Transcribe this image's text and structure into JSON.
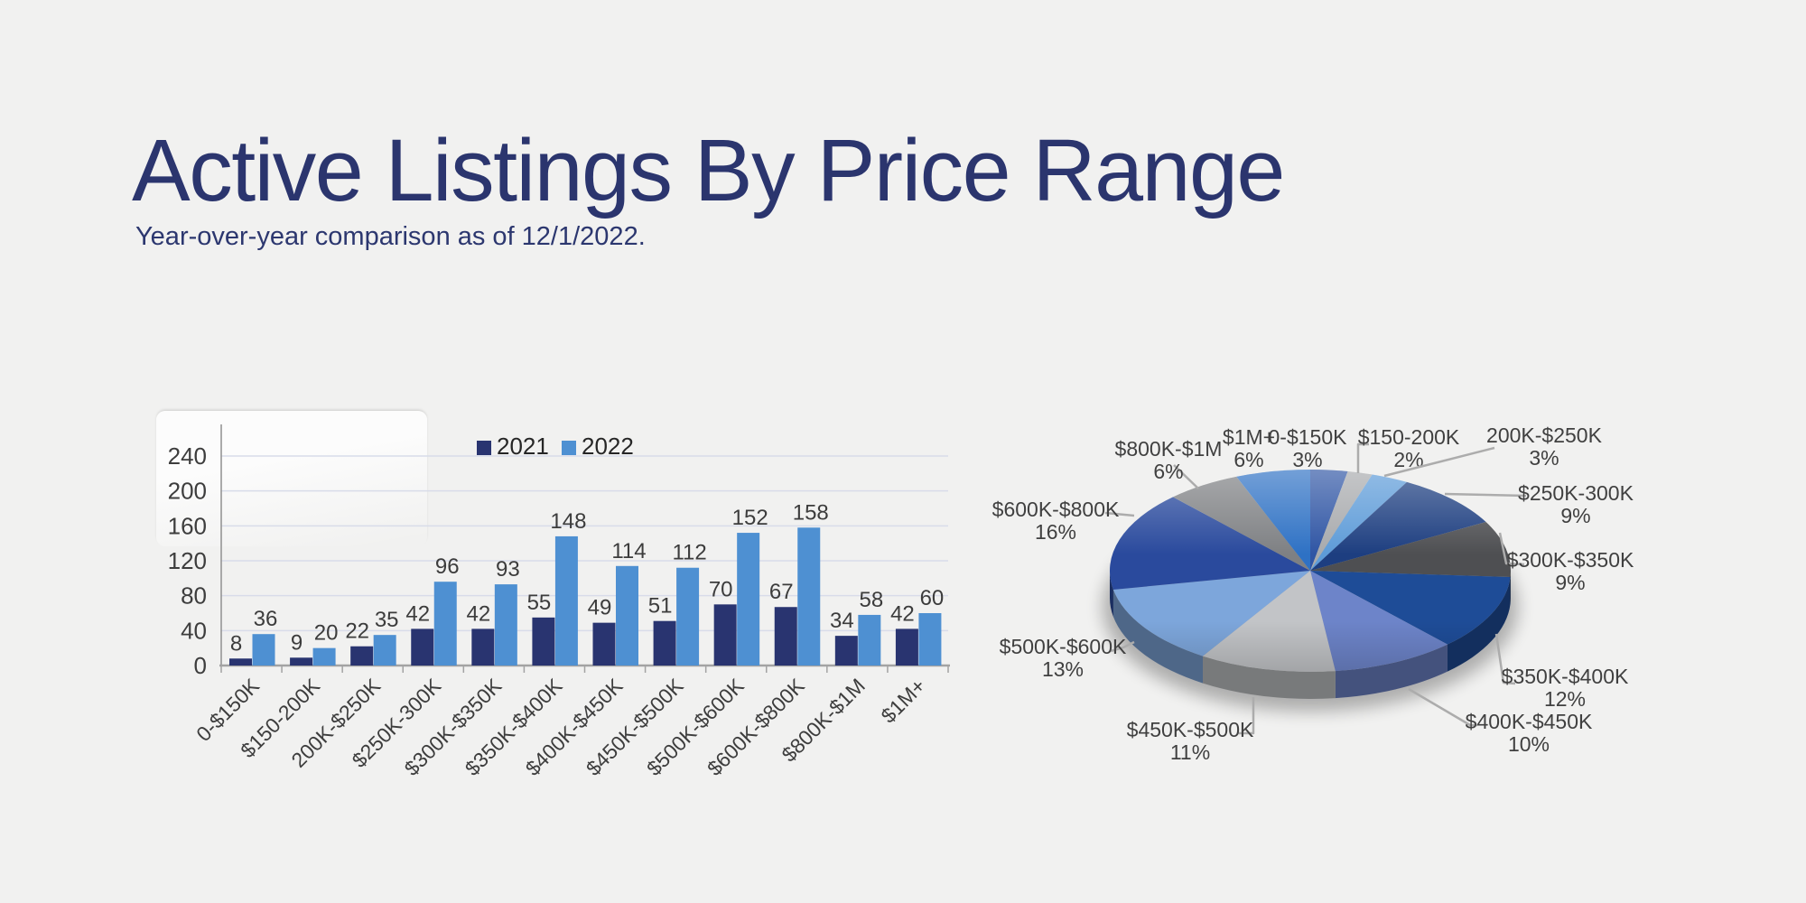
{
  "header": {
    "title": "Active Listings By Price Range",
    "subtitle": "Year-over-year comparison as of 12/1/2022.",
    "title_color": "#2b356e"
  },
  "chart_data": [
    {
      "type": "bar",
      "categories": [
        "0-$150K",
        "$150-200K",
        "200K-$250K",
        "$250K-300K",
        "$300K-$350K",
        "$350K-$400K",
        "$400K-$450K",
        "$450K-$500K",
        "$500K-$600K",
        "$600K-$800K",
        "$800K-$1M",
        "$1M+"
      ],
      "series": [
        {
          "name": "2021",
          "color": "#293470",
          "values": [
            8,
            9,
            22,
            42,
            42,
            55,
            49,
            51,
            70,
            67,
            34,
            42
          ]
        },
        {
          "name": "2022",
          "color": "#4e90d2",
          "values": [
            36,
            20,
            35,
            96,
            93,
            148,
            114,
            112,
            152,
            158,
            58,
            60
          ]
        }
      ],
      "ylim": [
        0,
        240
      ],
      "ytick_step": 40,
      "grid": true,
      "legend_position": "top",
      "gridline_color": "#d8dcE9",
      "axis_color": "#a3a3a3",
      "label_color": "#3d3d3d"
    },
    {
      "type": "pie",
      "categories": [
        "0-$150K",
        "$150-200K",
        "200K-$250K",
        "$250K-300K",
        "$300K-$350K",
        "$350K-$400K",
        "$400K-$450K",
        "$450K-$500K",
        "$500K-$600K",
        "$600K-$800K",
        "$800K-$1M",
        "$1M+"
      ],
      "values": [
        3,
        2,
        3,
        9,
        9,
        12,
        10,
        11,
        13,
        16,
        6,
        6
      ],
      "unit": "%",
      "colors": [
        "#2f55a4",
        "#a8aaad",
        "#5d9bd8",
        "#1d3e80",
        "#4e4f52",
        "#1e4c97",
        "#6d84c9",
        "#c2c4c7",
        "#7da6db",
        "#2a4a9d",
        "#7e8083",
        "#2e71c4"
      ],
      "start_angle_deg": -90,
      "direction": "clockwise",
      "effect": "3d",
      "label_color": "#404040",
      "leader_color": "#acacac"
    }
  ]
}
